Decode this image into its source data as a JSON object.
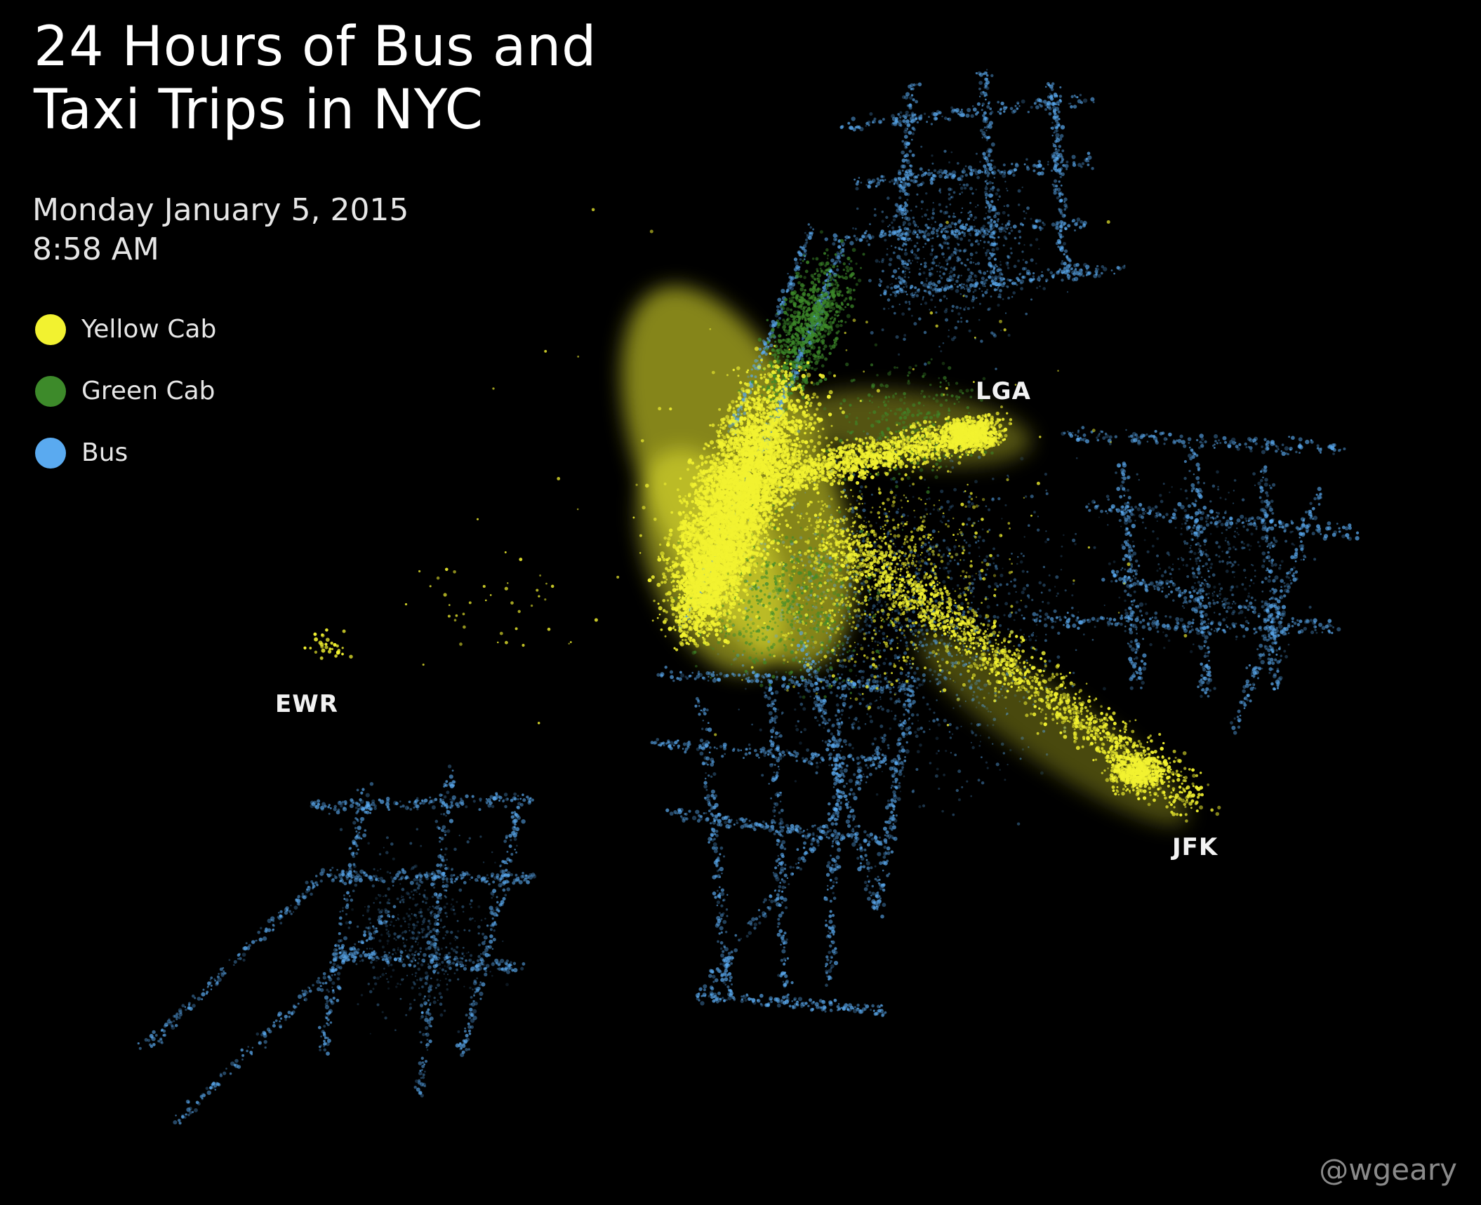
{
  "title_lines": [
    "24 Hours of Bus and",
    "Taxi Trips in NYC"
  ],
  "date": "Monday January 5, 2015",
  "time": "8:58 AM",
  "legend": [
    {
      "label": "Yellow Cab",
      "color": "#f2f230"
    },
    {
      "label": "Green Cab",
      "color": "#3d8a2a"
    },
    {
      "label": "Bus",
      "color": "#5aaaf0"
    }
  ],
  "airports": {
    "lga": "LGA",
    "ewr": "EWR",
    "jfk": "JFK"
  },
  "credit": "@wgeary"
}
